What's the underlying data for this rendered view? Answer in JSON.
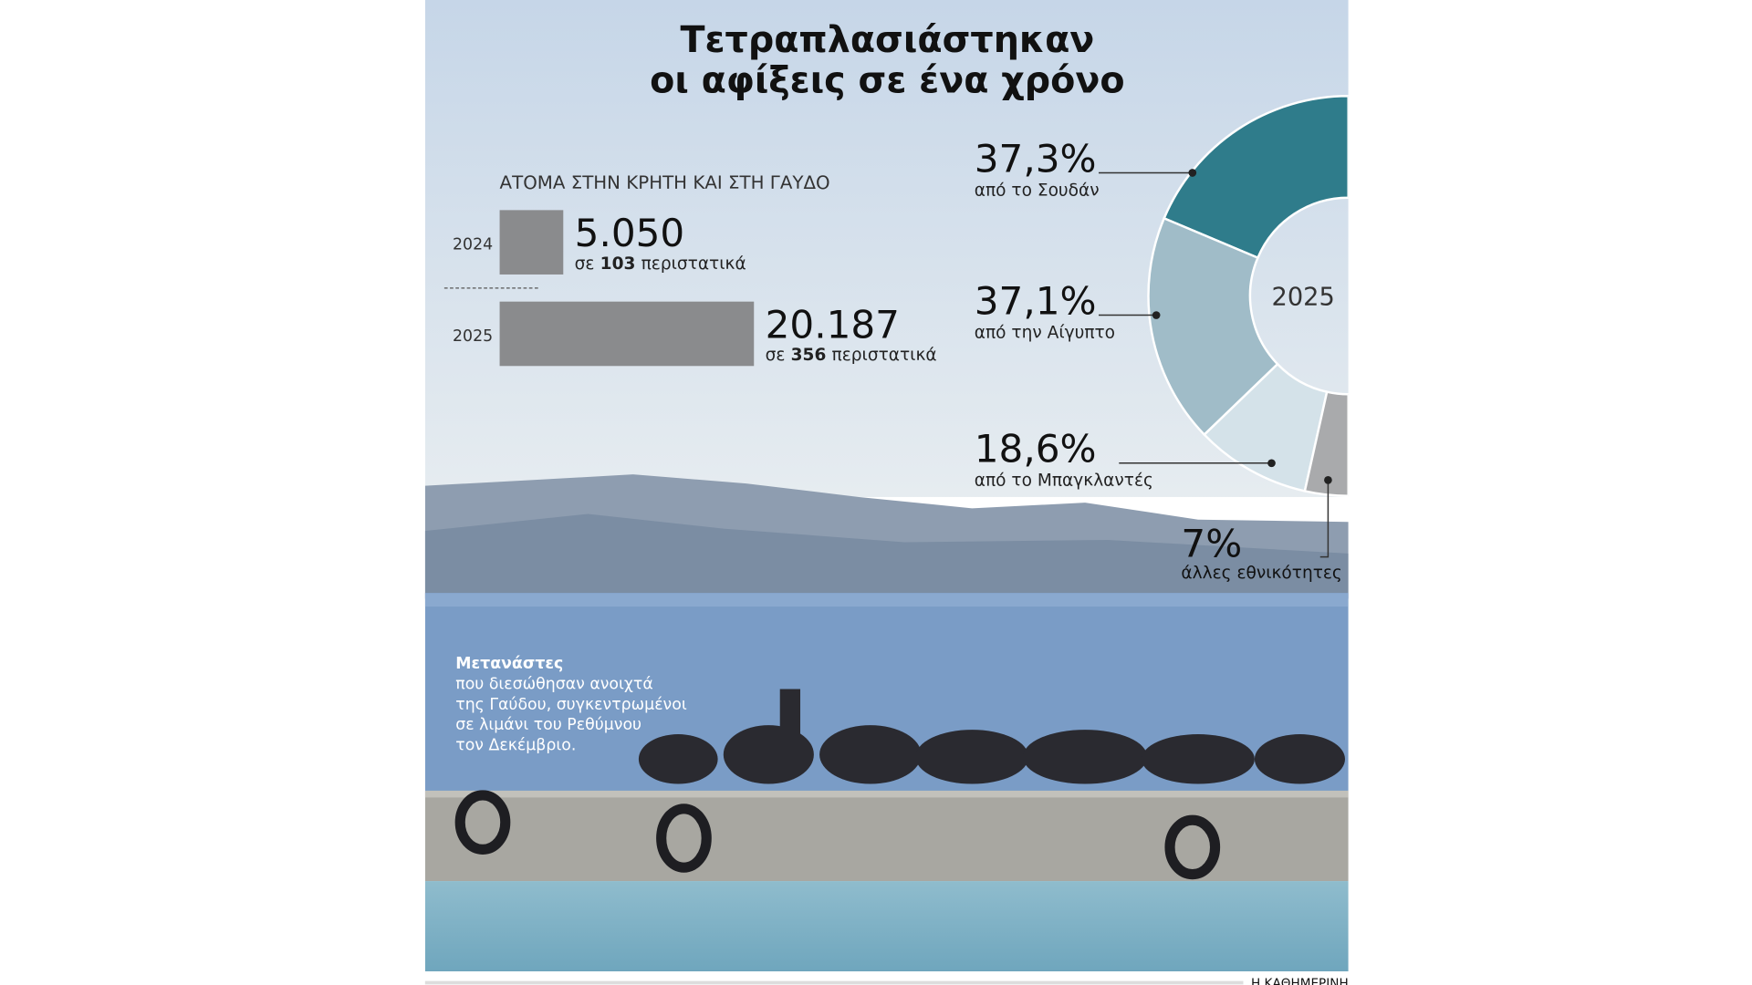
{
  "title": [
    "Τετραπλασιάστηκαν",
    "οι αφίξεις σε ένα χρόνο"
  ],
  "chart_data": [
    {
      "type": "bar",
      "title": "ΑΤΟΜΑ ΣΤΗΝ ΚΡΗΤΗ ΚΑΙ ΣΤΗ ΓΑΥΔΟ",
      "categories": [
        "2024",
        "2025"
      ],
      "values": [
        5050,
        20187
      ],
      "value_labels": [
        "5.050",
        "20.187"
      ],
      "color": "#8a8b8d",
      "notes": [
        {
          "prefix": "σε",
          "count": 103,
          "suffix": "περιστατικά"
        },
        {
          "prefix": "σε",
          "count": 356,
          "suffix": "περιστατικά"
        }
      ]
    },
    {
      "type": "pie",
      "center_label": "2025",
      "categories": [
        "από το Σουδάν",
        "από την Αίγυπτο",
        "από το Μπαγκλαντές",
        "άλλες εθνικότητες"
      ],
      "values": [
        37.3,
        37.1,
        18.6,
        7
      ],
      "value_labels": [
        "37,3%",
        "37,1%",
        "18,6%",
        "7%"
      ],
      "colors": [
        "#2f7c8b",
        "#a0bcc8",
        "#d4e2e9",
        "#a9aaac"
      ]
    }
  ],
  "caption": {
    "title": "Μετανάστες",
    "lines": [
      "που διεσώθησαν ανοιχτά",
      "της Γαύδου, συγκεντρωμένοι",
      "σε λιμάνι του Ρεθύμνου",
      "τον Δεκέμβριο."
    ]
  },
  "credit": "Η ΚΑΘΗΜΕΡΙΝΗ"
}
